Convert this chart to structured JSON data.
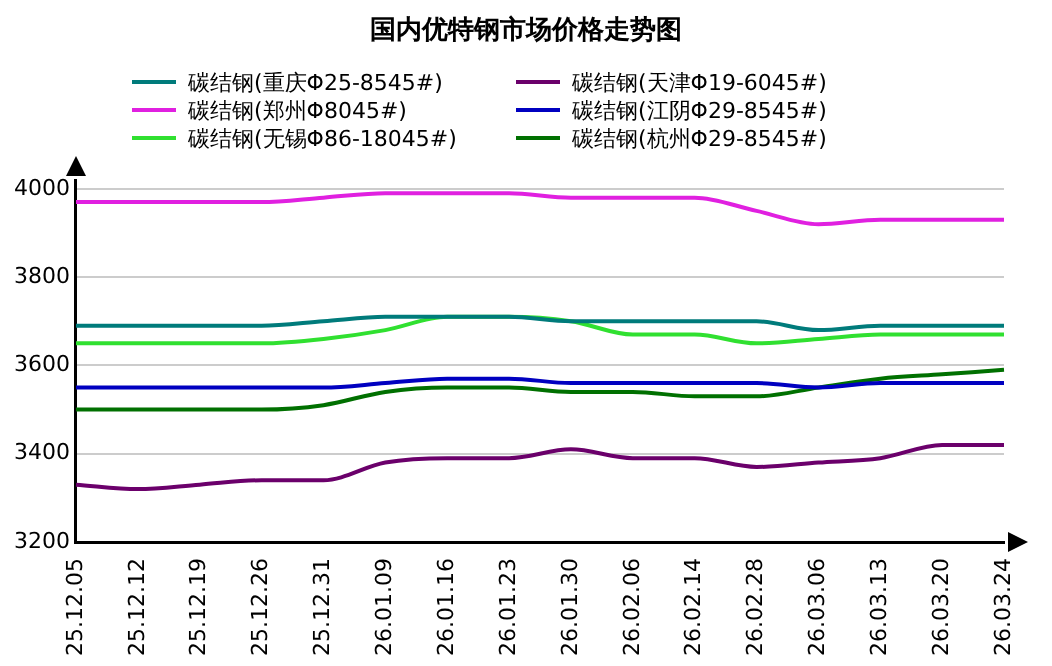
{
  "chart_data": {
    "type": "line",
    "title": "国内优特钢市场价格走势图",
    "categories": [
      "25.12.05",
      "25.12.12",
      "25.12.19",
      "25.12.26",
      "25.12.31",
      "26.01.09",
      "26.01.16",
      "26.01.23",
      "26.01.30",
      "26.02.06",
      "26.02.14",
      "26.02.28",
      "26.03.06",
      "26.03.13",
      "26.03.20",
      "26.03.24"
    ],
    "series": [
      {
        "name": "碳结钢(重庆Φ25-8545#)",
        "color": "#007b7b",
        "values": [
          3690,
          3690,
          3690,
          3690,
          3700,
          3710,
          3710,
          3710,
          3700,
          3700,
          3700,
          3700,
          3680,
          3690,
          3690,
          3690
        ]
      },
      {
        "name": "碳结钢(天津Φ19-6045#)",
        "color": "#6b006b",
        "values": [
          3330,
          3320,
          3330,
          3340,
          3340,
          3380,
          3390,
          3390,
          3410,
          3390,
          3390,
          3370,
          3380,
          3390,
          3420,
          3420
        ]
      },
      {
        "name": "碳结钢(郑州Φ8045#)",
        "color": "#e020e0",
        "values": [
          3970,
          3970,
          3970,
          3970,
          3980,
          3990,
          3990,
          3990,
          3980,
          3980,
          3980,
          3950,
          3920,
          3930,
          3930,
          3930
        ]
      },
      {
        "name": "碳结钢(江阴Φ29-8545#)",
        "color": "#0000c0",
        "values": [
          3550,
          3550,
          3550,
          3550,
          3550,
          3560,
          3570,
          3570,
          3560,
          3560,
          3560,
          3560,
          3550,
          3560,
          3560,
          3560
        ]
      },
      {
        "name": "碳结钢(无锡Φ86-18045#)",
        "color": "#30e030",
        "values": [
          3650,
          3650,
          3650,
          3650,
          3660,
          3680,
          3710,
          3710,
          3700,
          3670,
          3670,
          3650,
          3660,
          3670,
          3670,
          3670
        ]
      },
      {
        "name": "碳结钢(杭州Φ29-8545#)",
        "color": "#007000",
        "values": [
          3500,
          3500,
          3500,
          3500,
          3510,
          3540,
          3550,
          3550,
          3540,
          3540,
          3530,
          3530,
          3550,
          3570,
          3580,
          3590
        ]
      }
    ],
    "ylim": [
      3200,
      4020
    ],
    "yticks": [
      3200,
      3400,
      3600,
      3800,
      4000
    ],
    "grid": "y",
    "legend": "top",
    "marker": "none",
    "line_style": "solid"
  }
}
